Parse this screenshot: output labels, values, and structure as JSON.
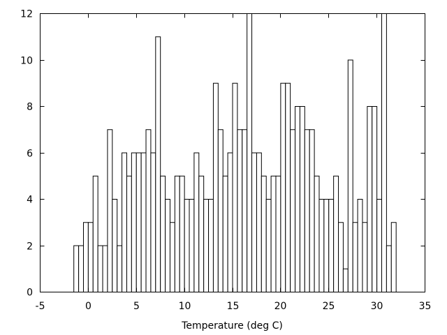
{
  "chart_data": {
    "type": "bar",
    "title": "",
    "xlabel": "Temperature (deg C)",
    "ylabel": "",
    "xlim": [
      -5,
      35
    ],
    "ylim": [
      0,
      12
    ],
    "grid": false,
    "legend": "none",
    "x_ticks": [
      "-5",
      "0",
      "5",
      "10",
      "15",
      "20",
      "25",
      "30",
      "35"
    ],
    "y_ticks": [
      "0",
      "2",
      "4",
      "6",
      "8",
      "10",
      "12"
    ],
    "bin_width": 0.5,
    "x": [
      -1.25,
      -0.75,
      -0.25,
      0.25,
      0.75,
      1.25,
      1.75,
      2.25,
      2.75,
      3.25,
      3.75,
      4.25,
      4.75,
      5.25,
      5.75,
      6.25,
      6.75,
      7.25,
      7.75,
      8.25,
      8.75,
      9.25,
      9.75,
      10.25,
      10.75,
      11.25,
      11.75,
      12.25,
      12.75,
      13.25,
      13.75,
      14.25,
      14.75,
      15.25,
      15.75,
      16.25,
      16.75,
      17.25,
      17.75,
      18.25,
      18.75,
      19.25,
      19.75,
      20.25,
      20.75,
      21.25,
      21.75,
      22.25,
      22.75,
      23.25,
      23.75,
      24.25,
      24.75,
      25.25,
      25.75,
      26.25,
      26.75,
      27.25,
      27.75,
      28.25,
      28.75,
      29.25,
      29.75,
      30.25,
      30.75,
      31.25,
      31.75
    ],
    "values": [
      2,
      2,
      3,
      3,
      5,
      2,
      2,
      7,
      4,
      2,
      6,
      5,
      6,
      6,
      6,
      7,
      6,
      11,
      5,
      4,
      3,
      5,
      5,
      4,
      4,
      6,
      5,
      4,
      4,
      9,
      7,
      5,
      6,
      9,
      7,
      7,
      12,
      6,
      6,
      5,
      4,
      5,
      5,
      9,
      9,
      7,
      8,
      8,
      7,
      7,
      5,
      4,
      4,
      4,
      5,
      3,
      1,
      10,
      3,
      4,
      3,
      8,
      8,
      4,
      12,
      2,
      3
    ],
    "bar_fill": "#ffffff",
    "bar_stroke": "#000000"
  }
}
